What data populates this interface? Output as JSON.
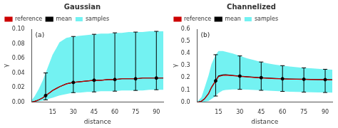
{
  "chart_data": [
    {
      "type": "line",
      "title": "Gaussian",
      "xlabel": "distance",
      "ylabel": "γ",
      "annotation": "(a)",
      "grid": false,
      "legend": "upper left",
      "x": [
        0,
        2,
        5,
        8,
        10,
        13,
        15,
        18,
        20,
        25,
        30,
        35,
        40,
        45,
        50,
        55,
        60,
        65,
        70,
        75,
        80,
        85,
        90,
        95
      ],
      "series": [
        {
          "name": "reference",
          "color": "#cc0000",
          "values": [
            0.0,
            0.001,
            0.003,
            0.006,
            0.009,
            0.013,
            0.016,
            0.019,
            0.021,
            0.025,
            0.027,
            0.028,
            0.029,
            0.03,
            0.03,
            0.031,
            0.031,
            0.032,
            0.032,
            0.032,
            0.033,
            0.033,
            0.033,
            0.033
          ]
        },
        {
          "name": "mean",
          "color": "#000000",
          "values": [
            0.0,
            0.001,
            0.003,
            0.006,
            0.009,
            0.013,
            0.016,
            0.019,
            0.021,
            0.025,
            0.027,
            0.028,
            0.029,
            0.03,
            0.03,
            0.031,
            0.031,
            0.032,
            0.032,
            0.032,
            0.033,
            0.033,
            0.033,
            0.033
          ]
        }
      ],
      "band": {
        "name": "samples",
        "color": "#00e8e8",
        "lo": [
          0.0,
          0.0,
          0.001,
          0.002,
          0.003,
          0.005,
          0.006,
          0.008,
          0.009,
          0.011,
          0.013,
          0.013,
          0.014,
          0.014,
          0.015,
          0.015,
          0.015,
          0.016,
          0.016,
          0.016,
          0.016,
          0.017,
          0.017,
          0.017
        ],
        "hi": [
          0.003,
          0.008,
          0.018,
          0.03,
          0.04,
          0.055,
          0.065,
          0.075,
          0.082,
          0.088,
          0.09,
          0.091,
          0.092,
          0.093,
          0.094,
          0.094,
          0.095,
          0.095,
          0.096,
          0.096,
          0.096,
          0.097,
          0.097,
          0.097
        ]
      },
      "error_bars": {
        "color": "#000000",
        "x": [
          10,
          30,
          45,
          60,
          75,
          90
        ],
        "y": [
          0.009,
          0.027,
          0.03,
          0.031,
          0.032,
          0.033
        ],
        "lo": [
          0.003,
          0.013,
          0.014,
          0.015,
          0.016,
          0.017
        ],
        "hi": [
          0.04,
          0.09,
          0.093,
          0.095,
          0.096,
          0.097
        ]
      },
      "xlim": [
        0,
        95
      ],
      "ylim": [
        0.0,
        0.1
      ],
      "xticks": [
        15,
        30,
        45,
        60,
        75,
        90
      ],
      "yticks": [
        {
          "value": 0.0,
          "label": "0.00"
        },
        {
          "value": 0.02,
          "label": "0.02"
        },
        {
          "value": 0.04,
          "label": "0.04"
        },
        {
          "value": 0.06,
          "label": "0.06"
        },
        {
          "value": 0.08,
          "label": "0.08"
        },
        {
          "value": 0.1,
          "label": "0.10"
        }
      ]
    },
    {
      "type": "line",
      "title": "Channelized",
      "xlabel": "distance",
      "ylabel": "γ",
      "annotation": "(b)",
      "grid": false,
      "legend": "upper left",
      "x": [
        0,
        1,
        3,
        5,
        8,
        10,
        13,
        15,
        18,
        20,
        25,
        30,
        35,
        40,
        45,
        50,
        55,
        60,
        65,
        70,
        75,
        80,
        85,
        90,
        95
      ],
      "series": [
        {
          "name": "reference",
          "color": "#cc0000",
          "values": [
            0.0,
            0.002,
            0.008,
            0.025,
            0.07,
            0.12,
            0.175,
            0.21,
            0.22,
            0.222,
            0.218,
            0.212,
            0.207,
            0.203,
            0.199,
            0.196,
            0.193,
            0.191,
            0.189,
            0.188,
            0.187,
            0.186,
            0.185,
            0.184,
            0.183
          ]
        },
        {
          "name": "mean",
          "color": "#000000",
          "values": [
            0.0,
            0.002,
            0.008,
            0.025,
            0.07,
            0.12,
            0.175,
            0.215,
            0.223,
            0.225,
            0.22,
            0.214,
            0.209,
            0.205,
            0.201,
            0.198,
            0.195,
            0.192,
            0.19,
            0.189,
            0.188,
            0.187,
            0.186,
            0.185,
            0.184
          ]
        }
      ],
      "band": {
        "name": "samples",
        "color": "#00e8e8",
        "lo": [
          0.0,
          0.0,
          0.001,
          0.004,
          0.01,
          0.025,
          0.05,
          0.075,
          0.095,
          0.1,
          0.105,
          0.105,
          0.103,
          0.1,
          0.097,
          0.094,
          0.091,
          0.088,
          0.086,
          0.084,
          0.082,
          0.081,
          0.08,
          0.079,
          0.078
        ],
        "hi": [
          0.005,
          0.015,
          0.04,
          0.11,
          0.22,
          0.31,
          0.39,
          0.42,
          0.42,
          0.415,
          0.4,
          0.38,
          0.36,
          0.345,
          0.33,
          0.318,
          0.308,
          0.3,
          0.293,
          0.287,
          0.282,
          0.278,
          0.274,
          0.27,
          0.267
        ]
      },
      "error_bars": {
        "color": "#000000",
        "x": [
          13,
          30,
          45,
          60,
          75,
          90
        ],
        "y": [
          0.175,
          0.214,
          0.201,
          0.192,
          0.188,
          0.185
        ],
        "lo": [
          0.05,
          0.105,
          0.097,
          0.088,
          0.082,
          0.079
        ],
        "hi": [
          0.39,
          0.38,
          0.33,
          0.3,
          0.282,
          0.27
        ]
      },
      "xlim": [
        0,
        95
      ],
      "ylim": [
        0.0,
        0.6
      ],
      "xticks": [
        15,
        30,
        45,
        60,
        75,
        90
      ],
      "yticks": [
        {
          "value": 0.0,
          "label": "0.0"
        },
        {
          "value": 0.1,
          "label": "0.1"
        },
        {
          "value": 0.2,
          "label": "0.2"
        },
        {
          "value": 0.3,
          "label": "0.3"
        },
        {
          "value": 0.4,
          "label": "0.4"
        },
        {
          "value": 0.5,
          "label": "0.5"
        },
        {
          "value": 0.6,
          "label": "0.6"
        }
      ]
    }
  ]
}
